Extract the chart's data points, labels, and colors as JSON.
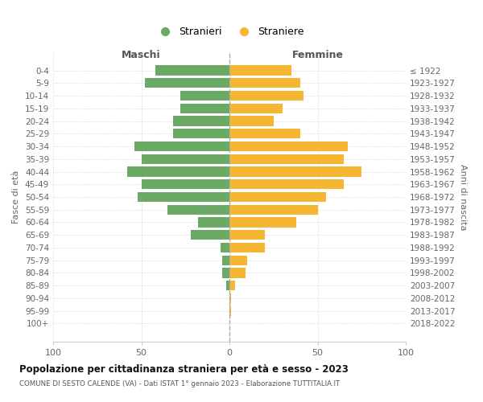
{
  "age_groups": [
    "0-4",
    "5-9",
    "10-14",
    "15-19",
    "20-24",
    "25-29",
    "30-34",
    "35-39",
    "40-44",
    "45-49",
    "50-54",
    "55-59",
    "60-64",
    "65-69",
    "70-74",
    "75-79",
    "80-84",
    "85-89",
    "90-94",
    "95-99",
    "100+"
  ],
  "birth_years": [
    "2018-2022",
    "2013-2017",
    "2008-2012",
    "2003-2007",
    "1998-2002",
    "1993-1997",
    "1988-1992",
    "1983-1987",
    "1978-1982",
    "1973-1977",
    "1968-1972",
    "1963-1967",
    "1958-1962",
    "1953-1957",
    "1948-1952",
    "1943-1947",
    "1938-1942",
    "1933-1937",
    "1928-1932",
    "1923-1927",
    "≤ 1922"
  ],
  "maschi": [
    42,
    48,
    28,
    28,
    32,
    32,
    54,
    50,
    58,
    50,
    52,
    35,
    18,
    22,
    5,
    4,
    4,
    2,
    0,
    0,
    0
  ],
  "femmine": [
    35,
    40,
    42,
    30,
    25,
    40,
    67,
    65,
    75,
    65,
    55,
    50,
    38,
    20,
    20,
    10,
    9,
    3,
    1,
    1,
    0
  ],
  "maschi_color": "#6aaa64",
  "femmine_color": "#f5b731",
  "background_color": "#ffffff",
  "grid_color": "#cccccc",
  "title": "Popolazione per cittadinanza straniera per età e sesso - 2023",
  "subtitle": "COMUNE DI SESTO CALENDE (VA) - Dati ISTAT 1° gennaio 2023 - Elaborazione TUTTITALIA.IT",
  "xlabel_left": "Maschi",
  "xlabel_right": "Femmine",
  "ylabel_left": "Fasce di età",
  "ylabel_right": "Anni di nascita",
  "legend_maschi": "Stranieri",
  "legend_femmine": "Straniere",
  "xlim": 100,
  "xtick_labels": [
    "100",
    "50",
    "0",
    "50",
    "100"
  ]
}
